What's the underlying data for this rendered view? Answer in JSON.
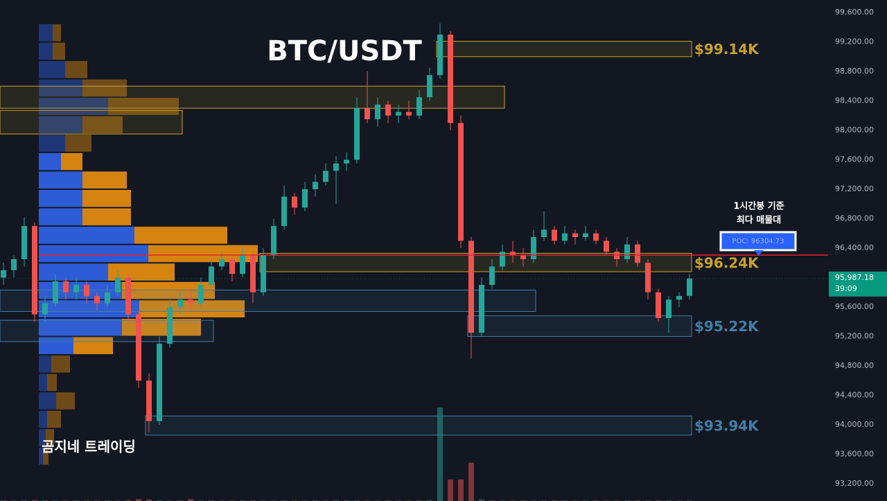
{
  "chart_data": {
    "type": "candlestick",
    "title": "BTC/USDT",
    "watermark": "곰지네 트레이딩",
    "annotation": [
      "1시간봉 기준",
      "최다 매물대"
    ],
    "ylim": [
      92965,
      99770
    ],
    "yticks": [
      {
        "value": 99600,
        "label": "99,600.00"
      },
      {
        "value": 99200,
        "label": "99,200.00"
      },
      {
        "value": 98800,
        "label": "98,800.00"
      },
      {
        "value": 98400,
        "label": "98,400.00"
      },
      {
        "value": 98000,
        "label": "98,000.00"
      },
      {
        "value": 97600,
        "label": "97,600.00"
      },
      {
        "value": 97200,
        "label": "97,200.00"
      },
      {
        "value": 96800,
        "label": "96,800.00"
      },
      {
        "value": 96400,
        "label": "96,400.00"
      },
      {
        "value": 96000,
        "label": "96,000.00"
      },
      {
        "value": 95600,
        "label": "95,600.00"
      },
      {
        "value": 95200,
        "label": "95,200.00"
      },
      {
        "value": 94800,
        "label": "94,800.00"
      },
      {
        "value": 94400,
        "label": "94,400.00"
      },
      {
        "value": 94000,
        "label": "94,000.00"
      },
      {
        "value": 93600,
        "label": "93,600.00"
      },
      {
        "value": 93200,
        "label": "93,200.00"
      }
    ],
    "grid": false,
    "up_color": "#26a69a",
    "down_color": "#ef5350",
    "candles": [
      [
        96000,
        96200,
        95900,
        96100
      ],
      [
        96100,
        96300,
        96000,
        96250
      ],
      [
        96250,
        96820,
        96150,
        96700
      ],
      [
        96700,
        96750,
        95400,
        95500
      ],
      [
        95500,
        95750,
        95400,
        95650
      ],
      [
        95650,
        96050,
        95600,
        95950
      ],
      [
        95950,
        96000,
        95700,
        95800
      ],
      [
        95800,
        96000,
        95700,
        95900
      ],
      [
        95900,
        95950,
        95650,
        95750
      ],
      [
        95750,
        95800,
        95550,
        95650
      ],
      [
        95650,
        95900,
        95600,
        95800
      ],
      [
        95800,
        96100,
        95750,
        96000
      ],
      [
        96000,
        96050,
        95400,
        95500
      ],
      [
        95500,
        95550,
        94500,
        94600
      ],
      [
        94600,
        94700,
        93900,
        94050
      ],
      [
        94050,
        95200,
        94000,
        95100
      ],
      [
        95100,
        95700,
        95050,
        95600
      ],
      [
        95600,
        95800,
        95500,
        95700
      ],
      [
        95700,
        95850,
        95550,
        95650
      ],
      [
        95650,
        96000,
        95600,
        95900
      ],
      [
        95900,
        96250,
        95850,
        96150
      ],
      [
        96150,
        96350,
        96100,
        96250
      ],
      [
        96250,
        96300,
        95950,
        96050
      ],
      [
        96050,
        96400,
        96000,
        96300
      ],
      [
        96300,
        96350,
        95650,
        95800
      ],
      [
        95800,
        96400,
        95750,
        96300
      ],
      [
        96300,
        96800,
        96250,
        96700
      ],
      [
        96700,
        97250,
        96650,
        97100
      ],
      [
        97100,
        97150,
        96850,
        96950
      ],
      [
        96950,
        97300,
        96900,
        97200
      ],
      [
        97200,
        97400,
        97100,
        97300
      ],
      [
        97300,
        97550,
        97250,
        97450
      ],
      [
        97450,
        97650,
        97000,
        97550
      ],
      [
        97550,
        97700,
        97450,
        97600
      ],
      [
        97600,
        98450,
        97550,
        98300
      ],
      [
        98300,
        98800,
        98100,
        98150
      ],
      [
        98150,
        98450,
        98050,
        98350
      ],
      [
        98350,
        98400,
        98100,
        98200
      ],
      [
        98200,
        98350,
        98100,
        98250
      ],
      [
        98250,
        98400,
        98150,
        98200
      ],
      [
        98200,
        98550,
        98150,
        98450
      ],
      [
        98450,
        98850,
        98400,
        98750
      ],
      [
        98750,
        99450,
        98700,
        99300
      ],
      [
        99300,
        99350,
        98000,
        98100
      ],
      [
        98100,
        98200,
        96400,
        96500
      ],
      [
        96500,
        96550,
        94900,
        95250
      ],
      [
        95250,
        96000,
        95200,
        95900
      ],
      [
        95900,
        96250,
        95850,
        96150
      ],
      [
        96150,
        96450,
        96100,
        96350
      ],
      [
        96350,
        96500,
        96200,
        96300
      ],
      [
        96300,
        96400,
        96150,
        96250
      ],
      [
        96250,
        96650,
        96200,
        96550
      ],
      [
        96550,
        96900,
        96500,
        96650
      ],
      [
        96650,
        96700,
        96450,
        96500
      ],
      [
        96500,
        96700,
        96450,
        96600
      ],
      [
        96600,
        96650,
        96450,
        96550
      ],
      [
        96550,
        96700,
        96500,
        96600
      ],
      [
        96600,
        96650,
        96450,
        96500
      ],
      [
        96500,
        96550,
        96300,
        96350
      ],
      [
        96350,
        96400,
        96150,
        96250
      ],
      [
        96250,
        96550,
        96200,
        96450
      ],
      [
        96450,
        96500,
        96150,
        96200
      ],
      [
        96200,
        96250,
        95700,
        95800
      ],
      [
        95800,
        95850,
        95400,
        95450
      ],
      [
        95450,
        95750,
        95250,
        95700
      ],
      [
        95700,
        95800,
        95600,
        95750
      ],
      [
        95750,
        96050,
        95700,
        95987.18
      ]
    ],
    "volumes": [
      5,
      5,
      8,
      10,
      5,
      5,
      5,
      5,
      5,
      5,
      5,
      5,
      10,
      20,
      15,
      8,
      5,
      5,
      20,
      5,
      5,
      5,
      5,
      5,
      5,
      5,
      5,
      5,
      5,
      5,
      5,
      5,
      10,
      5,
      5,
      5,
      5,
      5,
      5,
      5,
      5,
      8,
      1000,
      230,
      230,
      410,
      15,
      5,
      5,
      5,
      5,
      5,
      5,
      5,
      5,
      5,
      5,
      5,
      5,
      5,
      5,
      5,
      5,
      5,
      5,
      5,
      5
    ],
    "vlim": [
      0,
      1000
    ],
    "profile": {
      "bins": [
        93450,
        93700,
        93950,
        94200,
        94450,
        94700,
        94950,
        95200,
        95450,
        95700,
        95950,
        96200,
        96450,
        96700,
        96950,
        97200,
        97450,
        97700,
        97950,
        98200,
        98450,
        98700,
        98950,
        99200,
        99450
      ],
      "buy": [
        6,
        10,
        12,
        25,
        12,
        18,
        50,
        120,
        145,
        120,
        100,
        158,
        138,
        63,
        63,
        63,
        32,
        38,
        63,
        100,
        63,
        38,
        20,
        20
      ],
      "sell": [
        8,
        12,
        20,
        27,
        14,
        27,
        57,
        114,
        152,
        134,
        96,
        158,
        134,
        70,
        70,
        64,
        31,
        38,
        58,
        102,
        64,
        32,
        18,
        12
      ],
      "buy_color": "#2f5fe0",
      "sell_color": "#e08a10",
      "value_area": [
        94950,
        97700
      ]
    },
    "zones": [
      {
        "low": 99000,
        "high": 99210,
        "start": 42,
        "end": 66,
        "color": "#c9a227",
        "label": "$99.14K"
      },
      {
        "low": 98300,
        "high": 98600,
        "start": 0,
        "end": 48,
        "color": "#c9a227"
      },
      {
        "low": 97950,
        "high": 98270,
        "start": 0,
        "end": 17,
        "color": "#c9a227"
      },
      {
        "low": 96080,
        "high": 96330,
        "start": 25,
        "end": 66,
        "color": "#c9a227",
        "label": "$96.24K"
      },
      {
        "low": 95540,
        "high": 95830,
        "start": 0,
        "end": 51,
        "color": "#3f7fa8"
      },
      {
        "low": 95130,
        "high": 95420,
        "start": 0,
        "end": 20,
        "color": "#3f7fa8"
      },
      {
        "low": 95200,
        "high": 95480,
        "start": 45,
        "end": 66,
        "color": "#3f7fa8",
        "label": "$95.22K"
      },
      {
        "low": 93860,
        "high": 94120,
        "start": 14,
        "end": 66,
        "color": "#3f7fa8",
        "label": "$93.94K"
      }
    ],
    "poc": {
      "value": 96304.73,
      "label": "POC: 96304.73",
      "color": "#e0262e"
    },
    "last_price": {
      "value": 95987.18,
      "label": "95,987.18",
      "countdown": "39:09",
      "color": "#089981"
    }
  }
}
